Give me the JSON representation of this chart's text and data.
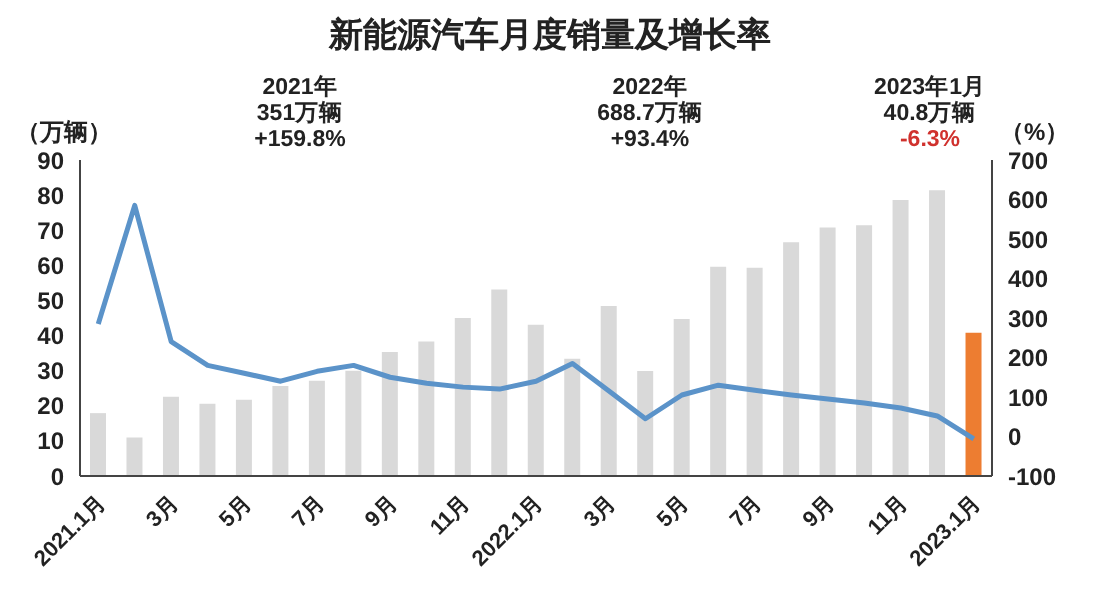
{
  "chart_data": {
    "type": "bar",
    "title": "新能源汽车月度销量及增长率",
    "categories": [
      "2021.1月",
      null,
      "3月",
      null,
      "5月",
      null,
      "7月",
      null,
      "9月",
      null,
      "11月",
      null,
      "2022.1月",
      null,
      "3月",
      null,
      "5月",
      null,
      "7月",
      null,
      "9月",
      null,
      "11月",
      null,
      "2023.1月"
    ],
    "ylabel": "（万辆）",
    "y2label": "（%）",
    "series": [
      {
        "colors": [
          "#d9d9d9",
          "#d9d9d9",
          "#d9d9d9",
          "#d9d9d9",
          "#d9d9d9",
          "#d9d9d9",
          "#d9d9d9",
          "#d9d9d9",
          "#d9d9d9",
          "#d9d9d9",
          "#d9d9d9",
          "#d9d9d9",
          "#d9d9d9",
          "#d9d9d9",
          "#d9d9d9",
          "#d9d9d9",
          "#d9d9d9",
          "#d9d9d9",
          "#d9d9d9",
          "#d9d9d9",
          "#d9d9d9",
          "#d9d9d9",
          "#d9d9d9",
          "#d9d9d9",
          "#ed7d31"
        ],
        "values": [
          17.9,
          11.0,
          22.6,
          20.6,
          21.7,
          25.6,
          27.1,
          30.0,
          35.3,
          38.3,
          45.0,
          53.1,
          43.1,
          33.4,
          48.4,
          29.9,
          44.7,
          59.6,
          59.3,
          66.6,
          70.8,
          71.4,
          78.6,
          81.4,
          40.8
        ]
      },
      {
        "type": "line",
        "axis": "y2",
        "color": "#5b93c9",
        "values": [
          285,
          585,
          240,
          180,
          160,
          140,
          165,
          180,
          150,
          135,
          125,
          120,
          140,
          185,
          115,
          45,
          105,
          130,
          117,
          105,
          95,
          85,
          72,
          52,
          -6.3
        ]
      }
    ],
    "ylim": [
      0,
      90
    ],
    "yticks": [
      0,
      10,
      20,
      30,
      40,
      50,
      60,
      70,
      80,
      90
    ],
    "y2lim": [
      -100,
      700
    ],
    "y2ticks": [
      -100,
      0,
      100,
      200,
      300,
      400,
      500,
      600,
      700
    ],
    "grid": false,
    "legend": false,
    "marker": "none",
    "line_style": "solid",
    "annotations": [
      "2021年",
      "351万辆",
      "+159.8%",
      "2022年",
      "688.7万辆",
      "+93.4%",
      "2023年1月",
      "40.8万辆",
      "-6.3%"
    ]
  }
}
